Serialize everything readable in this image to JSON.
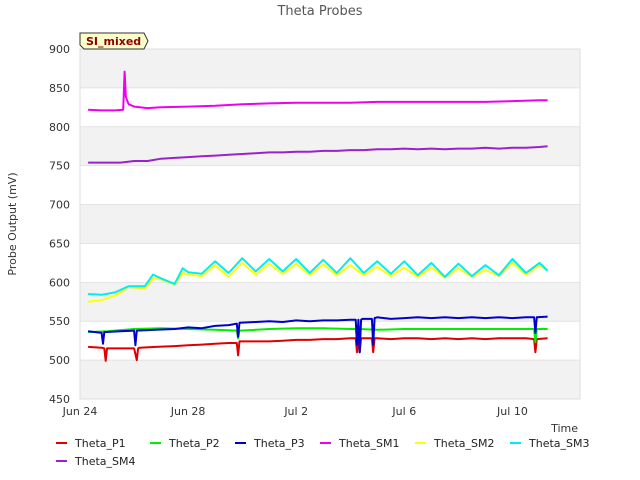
{
  "chart_data": {
    "type": "line",
    "title": "Theta Probes",
    "xlabel": "Time",
    "ylabel": "Probe Output (mV)",
    "badge": "SI_mixed",
    "ylim": [
      450,
      900
    ],
    "xlim": [
      0,
      18.5
    ],
    "yticks": [
      450,
      500,
      550,
      600,
      650,
      700,
      750,
      800,
      850,
      900
    ],
    "xticks": [
      {
        "day": 0,
        "label": "Jun 24"
      },
      {
        "day": 4,
        "label": "Jun 28"
      },
      {
        "day": 8,
        "label": "Jul 2"
      },
      {
        "day": 12,
        "label": "Jul 6"
      },
      {
        "day": 16,
        "label": "Jul 10"
      }
    ],
    "grid": "horizontal",
    "legend_position": "bottom",
    "series": [
      {
        "name": "Theta_P1",
        "color": "#dd0000",
        "x": [
          0.3,
          0.8,
          0.9,
          0.95,
          1.0,
          1.5,
          2.0,
          2.1,
          2.15,
          2.2,
          2.8,
          3.5,
          4.0,
          4.5,
          5.0,
          5.5,
          5.8,
          5.85,
          5.9,
          6.5,
          7.0,
          7.5,
          8.0,
          8.5,
          9.0,
          9.5,
          10.0,
          10.2,
          10.25,
          10.3,
          10.35,
          10.4,
          10.45,
          10.5,
          10.8,
          10.85,
          10.9,
          11.0,
          11.5,
          12.0,
          12.5,
          13.0,
          13.5,
          14.0,
          14.5,
          15.0,
          15.5,
          16.0,
          16.5,
          16.8,
          16.85,
          16.9,
          17.3
        ],
        "values": [
          517,
          516,
          515,
          499,
          515,
          515,
          515,
          500,
          515,
          516,
          517,
          518,
          519,
          520,
          521,
          522,
          522,
          506,
          524,
          524,
          524,
          525,
          526,
          526,
          527,
          527,
          528,
          528,
          510,
          528,
          510,
          528,
          528,
          528,
          528,
          510,
          528,
          528,
          527,
          528,
          528,
          527,
          528,
          527,
          528,
          527,
          528,
          528,
          528,
          527,
          510,
          527,
          528
        ]
      },
      {
        "name": "Theta_P2",
        "color": "#00ee00",
        "x": [
          0.3,
          1.0,
          2.0,
          3.0,
          4.0,
          5.0,
          5.8,
          5.85,
          5.9,
          6.5,
          7.0,
          8.0,
          9.0,
          10.0,
          10.2,
          10.25,
          10.3,
          11.0,
          12.0,
          13.0,
          14.0,
          15.0,
          16.0,
          16.8,
          16.85,
          16.9,
          17.3
        ],
        "values": [
          536,
          537,
          540,
          541,
          540,
          539,
          538,
          528,
          538,
          539,
          540,
          541,
          541,
          540,
          540,
          529,
          540,
          539,
          540,
          540,
          540,
          540,
          540,
          540,
          523,
          540,
          540
        ]
      },
      {
        "name": "Theta_P3",
        "color": "#0000cc",
        "x": [
          0.3,
          0.8,
          0.85,
          0.9,
          1.5,
          2.0,
          2.05,
          2.1,
          2.8,
          3.5,
          4.0,
          4.5,
          5.0,
          5.5,
          5.8,
          5.85,
          5.9,
          6.5,
          7.0,
          7.5,
          8.0,
          8.5,
          9.0,
          9.5,
          10.0,
          10.2,
          10.25,
          10.3,
          10.35,
          10.4,
          10.45,
          10.5,
          10.8,
          10.85,
          10.9,
          11.0,
          11.5,
          12.0,
          12.5,
          13.0,
          13.5,
          14.0,
          14.5,
          15.0,
          15.5,
          16.0,
          16.5,
          16.8,
          16.85,
          16.9,
          17.3
        ],
        "values": [
          537,
          535,
          521,
          536,
          537,
          538,
          519,
          538,
          539,
          540,
          542,
          541,
          544,
          545,
          547,
          530,
          548,
          549,
          550,
          549,
          551,
          550,
          551,
          551,
          552,
          552,
          520,
          552,
          510,
          552,
          553,
          553,
          553,
          520,
          554,
          555,
          553,
          554,
          555,
          554,
          555,
          554,
          555,
          554,
          555,
          554,
          555,
          555,
          535,
          555,
          556
        ]
      },
      {
        "name": "Theta_SM1",
        "color": "#ee00ee",
        "x": [
          0.3,
          0.8,
          1.3,
          1.6,
          1.65,
          1.7,
          1.8,
          2.0,
          2.5,
          3.0,
          4.0,
          5.0,
          6.0,
          7.0,
          8.0,
          9.0,
          10.0,
          11.0,
          12.0,
          13.0,
          14.0,
          15.0,
          16.0,
          17.0,
          17.3
        ],
        "values": [
          822,
          821,
          821,
          822,
          871,
          838,
          829,
          826,
          824,
          825,
          826,
          827,
          829,
          830,
          831,
          831,
          831,
          832,
          832,
          832,
          832,
          832,
          833,
          834,
          834
        ]
      },
      {
        "name": "Theta_SM2",
        "color": "#ffff00",
        "x": [
          0.3,
          0.8,
          1.3,
          1.8,
          2.4,
          2.7,
          3.0,
          3.5,
          3.8,
          4.0,
          4.5,
          5.0,
          5.5,
          6.0,
          6.5,
          7.0,
          7.5,
          8.0,
          8.5,
          9.0,
          9.5,
          10.0,
          10.5,
          11.0,
          11.5,
          12.0,
          12.5,
          13.0,
          13.5,
          14.0,
          14.5,
          15.0,
          15.5,
          16.0,
          16.5,
          17.0,
          17.3
        ],
        "values": [
          575,
          577,
          583,
          594,
          592,
          605,
          604,
          597,
          612,
          610,
          608,
          622,
          607,
          625,
          610,
          624,
          611,
          624,
          609,
          623,
          609,
          622,
          609,
          620,
          608,
          619,
          607,
          619,
          606,
          618,
          607,
          616,
          608,
          625,
          610,
          622,
          615
        ]
      },
      {
        "name": "Theta_SM3",
        "color": "#00eeee",
        "x": [
          0.3,
          0.8,
          1.3,
          1.8,
          2.4,
          2.7,
          3.0,
          3.5,
          3.8,
          4.0,
          4.5,
          5.0,
          5.5,
          6.0,
          6.5,
          7.0,
          7.5,
          8.0,
          8.5,
          9.0,
          9.5,
          10.0,
          10.5,
          11.0,
          11.5,
          12.0,
          12.5,
          13.0,
          13.5,
          14.0,
          14.5,
          15.0,
          15.5,
          16.0,
          16.5,
          17.0,
          17.3
        ],
        "values": [
          585,
          584,
          587,
          595,
          595,
          610,
          605,
          598,
          618,
          613,
          611,
          627,
          612,
          631,
          614,
          630,
          614,
          630,
          612,
          629,
          612,
          631,
          612,
          627,
          611,
          627,
          609,
          625,
          607,
          624,
          608,
          622,
          609,
          630,
          612,
          625,
          615
        ]
      },
      {
        "name": "Theta_SM4",
        "color": "#9922cc",
        "x": [
          0.3,
          1.0,
          1.5,
          2.0,
          2.5,
          3.0,
          3.5,
          4.0,
          4.5,
          5.0,
          5.5,
          6.0,
          6.5,
          7.0,
          7.5,
          8.0,
          8.5,
          9.0,
          9.5,
          10.0,
          10.5,
          11.0,
          11.5,
          12.0,
          12.5,
          13.0,
          13.5,
          14.0,
          14.5,
          15.0,
          15.5,
          16.0,
          16.5,
          17.0,
          17.3
        ],
        "values": [
          754,
          754,
          754,
          756,
          756,
          759,
          760,
          761,
          762,
          763,
          764,
          765,
          766,
          767,
          767,
          768,
          768,
          769,
          769,
          770,
          770,
          771,
          771,
          772,
          771,
          772,
          771,
          772,
          772,
          773,
          772,
          773,
          773,
          774,
          775
        ]
      }
    ]
  }
}
